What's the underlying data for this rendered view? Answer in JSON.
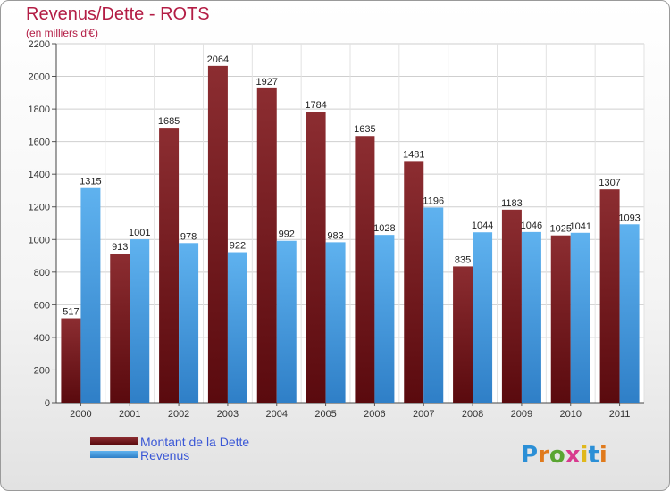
{
  "chart_data": {
    "type": "bar",
    "title": "Revenus/Dette - ROTS",
    "subtitle": "(en milliers d'€)",
    "xlabel": "",
    "ylabel": "",
    "ylim": [
      0,
      2200
    ],
    "yticks": [
      0,
      200,
      400,
      600,
      800,
      1000,
      1200,
      1400,
      1600,
      1800,
      2000,
      2200
    ],
    "grid": true,
    "legend_position": "bottom-left",
    "categories": [
      "2000",
      "2001",
      "2002",
      "2003",
      "2004",
      "2005",
      "2006",
      "2007",
      "2008",
      "2009",
      "2010",
      "2011"
    ],
    "series": [
      {
        "name": "Montant de la Dette",
        "color": "#7b1f24",
        "values": [
          517,
          913,
          1685,
          2064,
          1927,
          1784,
          1635,
          1481,
          835,
          1183,
          1025,
          1307
        ]
      },
      {
        "name": "Revenus",
        "color": "#4ea3e6",
        "values": [
          1315,
          1001,
          978,
          922,
          992,
          983,
          1028,
          1196,
          1044,
          1046,
          1041,
          1093
        ]
      }
    ]
  },
  "logo": {
    "text": "Proxiti",
    "letter_colors": [
      "#2b8fd6",
      "#e07a1c",
      "#5aa532",
      "#d83a8e",
      "#e0b81c",
      "#2b8fd6",
      "#e07a1c"
    ]
  }
}
